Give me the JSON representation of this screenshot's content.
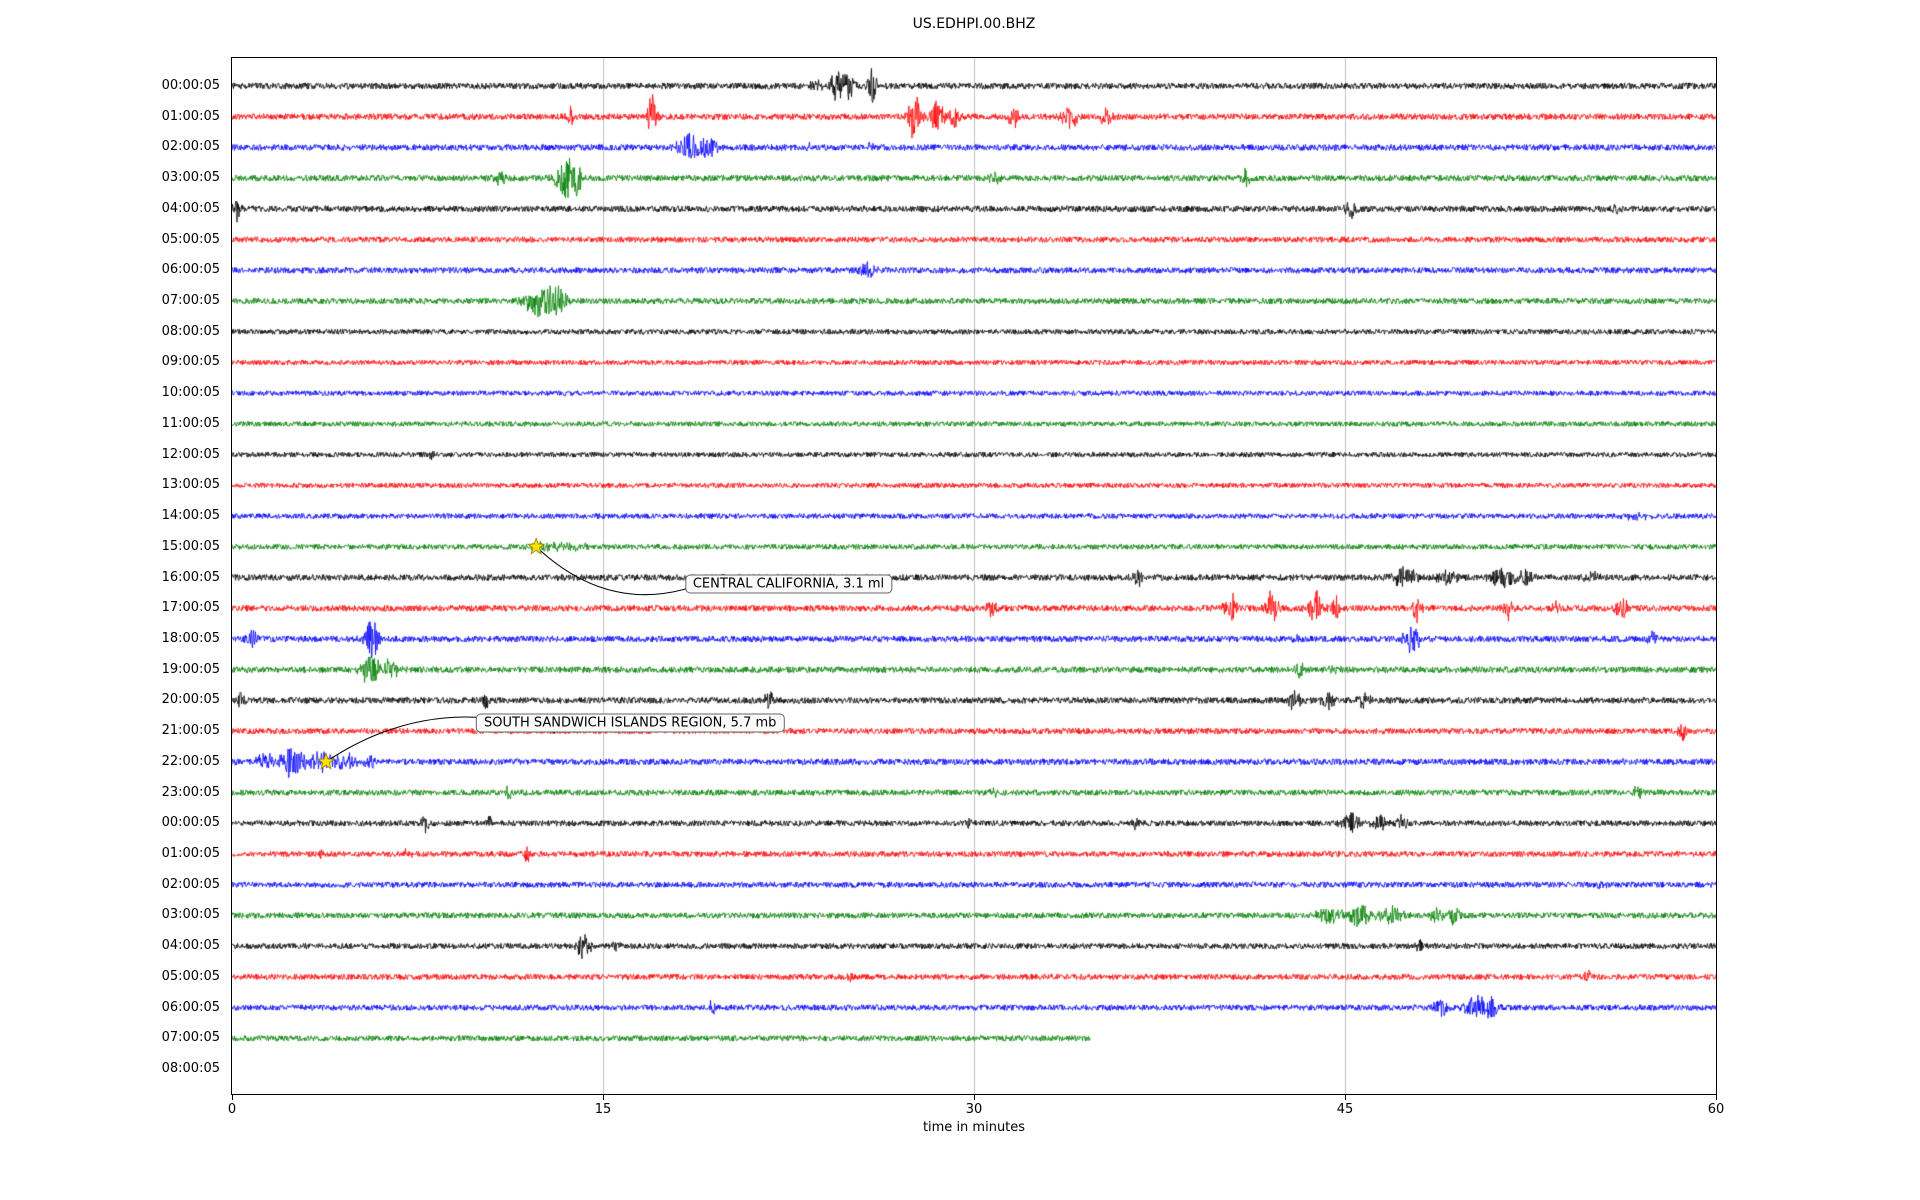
{
  "title": "US.EDHPI.00.BHZ",
  "x_axis": {
    "label": "time in minutes"
  },
  "style": {
    "color_cycle": [
      "#000000",
      "#ff0000",
      "#0000ff",
      "#008000"
    ],
    "grid_color": "#b0b0b0",
    "star_color": "#ffe200",
    "star_edge": "#9a7d00"
  },
  "chart_data": {
    "type": "line",
    "subtype": "seismogram_dayplot",
    "title": "US.EDHPI.00.BHZ",
    "xlabel": "time in minutes",
    "xlim": [
      0,
      60
    ],
    "x_ticks": [
      0,
      15,
      30,
      45,
      60
    ],
    "grid_vertical_minutes": [
      15,
      30,
      45
    ],
    "legend": "none",
    "rows": [
      {
        "label": "00:00:05",
        "color": "#000000",
        "noise": 2.6,
        "end_minute": 60,
        "bursts": [
          [
            23.6,
            0.2,
            8
          ],
          [
            24.5,
            0.35,
            15
          ],
          [
            25.0,
            0.2,
            10
          ],
          [
            25.9,
            0.2,
            17
          ]
        ]
      },
      {
        "label": "01:00:05",
        "color": "#ff0000",
        "noise": 2.6,
        "end_minute": 60,
        "bursts": [
          [
            13.7,
            0.15,
            10
          ],
          [
            17.0,
            0.2,
            20
          ],
          [
            27.6,
            0.25,
            24
          ],
          [
            28.5,
            0.3,
            16
          ],
          [
            29.2,
            0.2,
            12
          ],
          [
            31.6,
            0.2,
            13
          ],
          [
            33.9,
            0.4,
            11
          ],
          [
            35.3,
            0.3,
            9
          ]
        ]
      },
      {
        "label": "02:00:05",
        "color": "#0000ff",
        "noise": 2.6,
        "end_minute": 60,
        "bursts": [
          [
            18.5,
            0.45,
            13
          ],
          [
            19.3,
            0.35,
            9
          ],
          [
            23.3,
            0.1,
            5
          ],
          [
            25.8,
            0.1,
            5
          ]
        ]
      },
      {
        "label": "03:00:05",
        "color": "#008000",
        "noise": 2.6,
        "end_minute": 60,
        "bursts": [
          [
            10.8,
            0.2,
            8
          ],
          [
            13.5,
            0.45,
            21
          ],
          [
            14.0,
            0.2,
            10
          ],
          [
            30.9,
            0.3,
            4
          ],
          [
            41.0,
            0.15,
            9
          ]
        ]
      },
      {
        "label": "04:00:05",
        "color": "#000000",
        "noise": 2.6,
        "end_minute": 60,
        "bursts": [
          [
            0.2,
            0.15,
            12
          ],
          [
            45.2,
            0.25,
            9
          ],
          [
            56.0,
            0.2,
            4
          ]
        ]
      },
      {
        "label": "05:00:05",
        "color": "#ff0000",
        "noise": 2.4,
        "end_minute": 60,
        "bursts": []
      },
      {
        "label": "06:00:05",
        "color": "#0000ff",
        "noise": 2.5,
        "end_minute": 60,
        "bursts": [
          [
            25.7,
            0.3,
            8
          ]
        ]
      },
      {
        "label": "07:00:05",
        "color": "#008000",
        "noise": 2.5,
        "end_minute": 60,
        "bursts": [
          [
            12.4,
            0.7,
            16
          ],
          [
            13.2,
            0.35,
            11
          ]
        ]
      },
      {
        "label": "08:00:05",
        "color": "#000000",
        "noise": 2.2,
        "end_minute": 60,
        "bursts": []
      },
      {
        "label": "09:00:05",
        "color": "#ff0000",
        "noise": 2.1,
        "end_minute": 60,
        "bursts": []
      },
      {
        "label": "10:00:05",
        "color": "#0000ff",
        "noise": 2.1,
        "end_minute": 60,
        "bursts": []
      },
      {
        "label": "11:00:05",
        "color": "#008000",
        "noise": 2.1,
        "end_minute": 60,
        "bursts": []
      },
      {
        "label": "12:00:05",
        "color": "#000000",
        "noise": 2.1,
        "end_minute": 60,
        "bursts": [
          [
            8.1,
            0.1,
            7
          ]
        ]
      },
      {
        "label": "13:00:05",
        "color": "#ff0000",
        "noise": 2.1,
        "end_minute": 60,
        "bursts": []
      },
      {
        "label": "14:00:05",
        "color": "#0000ff",
        "noise": 2.2,
        "end_minute": 60,
        "bursts": [
          [
            56.8,
            0.5,
            3
          ]
        ]
      },
      {
        "label": "15:00:05",
        "color": "#008000",
        "noise": 2.2,
        "end_minute": 60,
        "bursts": [
          [
            12.5,
            0.35,
            5
          ],
          [
            13.6,
            1.2,
            2.5
          ]
        ]
      },
      {
        "label": "16:00:05",
        "color": "#000000",
        "noise": 2.6,
        "end_minute": 60,
        "bursts": [
          [
            36.6,
            0.25,
            8
          ],
          [
            47.4,
            0.5,
            10
          ],
          [
            49.1,
            0.4,
            8
          ],
          [
            51.4,
            0.5,
            9
          ],
          [
            52.3,
            0.3,
            7
          ],
          [
            55.0,
            0.3,
            5
          ]
        ]
      },
      {
        "label": "17:00:05",
        "color": "#ff0000",
        "noise": 2.6,
        "end_minute": 60,
        "bursts": [
          [
            30.7,
            0.2,
            10
          ],
          [
            40.4,
            0.3,
            13
          ],
          [
            42.0,
            0.3,
            15
          ],
          [
            43.8,
            0.3,
            19
          ],
          [
            44.6,
            0.2,
            12
          ],
          [
            47.9,
            0.2,
            12
          ],
          [
            51.6,
            0.2,
            10
          ],
          [
            53.5,
            0.15,
            7
          ],
          [
            56.2,
            0.25,
            11
          ]
        ]
      },
      {
        "label": "18:00:05",
        "color": "#0000ff",
        "noise": 2.6,
        "end_minute": 60,
        "bursts": [
          [
            0.8,
            0.2,
            12
          ],
          [
            5.6,
            0.25,
            19
          ],
          [
            5.9,
            0.15,
            12
          ],
          [
            43.0,
            0.15,
            6
          ],
          [
            47.7,
            0.35,
            13
          ],
          [
            57.4,
            0.2,
            6
          ]
        ]
      },
      {
        "label": "19:00:05",
        "color": "#008000",
        "noise": 2.6,
        "end_minute": 60,
        "bursts": [
          [
            5.6,
            0.4,
            15
          ],
          [
            6.4,
            0.3,
            10
          ],
          [
            43.2,
            0.2,
            9
          ],
          [
            44.6,
            0.2,
            8
          ]
        ]
      },
      {
        "label": "20:00:05",
        "color": "#000000",
        "noise": 2.6,
        "end_minute": 60,
        "bursts": [
          [
            0.4,
            0.2,
            8
          ],
          [
            10.3,
            0.15,
            9
          ],
          [
            21.7,
            0.2,
            9
          ],
          [
            43.0,
            0.3,
            11
          ],
          [
            44.3,
            0.25,
            10
          ],
          [
            45.8,
            0.25,
            8
          ]
        ]
      },
      {
        "label": "21:00:05",
        "color": "#ff0000",
        "noise": 2.5,
        "end_minute": 60,
        "bursts": [
          [
            58.6,
            0.2,
            10
          ]
        ]
      },
      {
        "label": "22:00:05",
        "color": "#0000ff",
        "noise": 2.6,
        "end_minute": 60,
        "bursts": [
          [
            1.3,
            0.3,
            7
          ],
          [
            2.4,
            0.5,
            11
          ],
          [
            3.7,
            0.4,
            9
          ],
          [
            4.6,
            0.4,
            7
          ],
          [
            5.6,
            0.3,
            6
          ],
          [
            3.0,
            2.0,
            3
          ]
        ]
      },
      {
        "label": "23:00:05",
        "color": "#008000",
        "noise": 2.4,
        "end_minute": 60,
        "bursts": [
          [
            11.2,
            0.15,
            7
          ],
          [
            30.8,
            0.15,
            6
          ],
          [
            56.8,
            0.2,
            7
          ]
        ]
      },
      {
        "label": "00:00:05",
        "color": "#000000",
        "noise": 2.4,
        "end_minute": 60,
        "bursts": [
          [
            7.8,
            0.15,
            8
          ],
          [
            10.4,
            0.1,
            7
          ],
          [
            29.8,
            0.12,
            9
          ],
          [
            36.5,
            0.15,
            7
          ],
          [
            45.2,
            0.35,
            10
          ],
          [
            46.4,
            0.3,
            9
          ],
          [
            47.3,
            0.2,
            7
          ]
        ]
      },
      {
        "label": "01:00:05",
        "color": "#ff0000",
        "noise": 2.4,
        "end_minute": 60,
        "bursts": [
          [
            3.6,
            0.12,
            8
          ],
          [
            7.1,
            0.12,
            9
          ],
          [
            11.9,
            0.12,
            10
          ]
        ]
      },
      {
        "label": "02:00:05",
        "color": "#0000ff",
        "noise": 2.4,
        "end_minute": 60,
        "bursts": [
          [
            55.4,
            0.2,
            6
          ]
        ]
      },
      {
        "label": "03:00:05",
        "color": "#008000",
        "noise": 2.4,
        "end_minute": 60,
        "bursts": [
          [
            44.4,
            0.5,
            9
          ],
          [
            45.6,
            0.4,
            11
          ],
          [
            46.9,
            0.5,
            9
          ],
          [
            48.7,
            0.3,
            8
          ],
          [
            49.4,
            0.2,
            11
          ]
        ]
      },
      {
        "label": "04:00:05",
        "color": "#000000",
        "noise": 2.4,
        "end_minute": 60,
        "bursts": [
          [
            14.2,
            0.3,
            11
          ],
          [
            15.5,
            0.2,
            8
          ],
          [
            48.0,
            0.15,
            8
          ]
        ]
      },
      {
        "label": "05:00:05",
        "color": "#ff0000",
        "noise": 2.4,
        "end_minute": 60,
        "bursts": [
          [
            25.0,
            0.12,
            8
          ],
          [
            54.8,
            0.12,
            7
          ]
        ]
      },
      {
        "label": "06:00:05",
        "color": "#0000ff",
        "noise": 2.4,
        "end_minute": 60,
        "bursts": [
          [
            19.4,
            0.12,
            8
          ],
          [
            48.9,
            0.3,
            9
          ],
          [
            50.3,
            0.4,
            13
          ],
          [
            50.9,
            0.3,
            9
          ]
        ]
      },
      {
        "label": "07:00:05",
        "color": "#008000",
        "noise": 2.4,
        "end_minute": 34.7,
        "bursts": []
      },
      {
        "label": "08:00:05",
        "color": "#000000",
        "noise": 0,
        "end_minute": 0,
        "bursts": []
      }
    ],
    "events": [
      {
        "label": "CENTRAL CALIFORNIA, 3.1 ml",
        "row": 15,
        "t_minutes": 12.3,
        "box_minutes": 22.5,
        "box_row": 16.2,
        "curve": -0.35
      },
      {
        "label": "SOUTH SANDWICH ISLANDS REGION, 5.7 mb",
        "row": 22,
        "t_minutes": 3.8,
        "box_minutes": 16.1,
        "box_row": 20.75,
        "curve": 0.25
      }
    ]
  }
}
